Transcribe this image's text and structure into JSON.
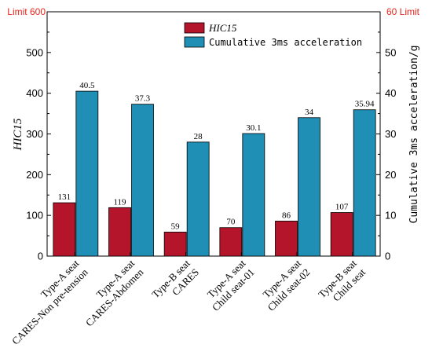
{
  "chart_data": {
    "type": "bar",
    "categories": [
      [
        "Type-A seat",
        "CARES-Non pre-tension"
      ],
      [
        "Type-A seat",
        "CARES-Abdomen"
      ],
      [
        "Type-B seat",
        "CARES"
      ],
      [
        "Type-A seat",
        "Child seat-01"
      ],
      [
        "Type-A seat",
        "Child seat-02"
      ],
      [
        "Type-B seat",
        "Child seat"
      ]
    ],
    "series": [
      {
        "name": "HIC15",
        "axis": "left",
        "color": "#b5152b",
        "values": [
          131,
          119,
          59,
          70,
          86,
          107
        ],
        "labels": [
          "131",
          "119",
          "59",
          "70",
          "86",
          "107"
        ]
      },
      {
        "name": "Cumulative 3ms acceleration",
        "axis": "right",
        "color": "#1f8fb5",
        "values": [
          40.5,
          37.3,
          28,
          30.1,
          34,
          35.94
        ],
        "labels": [
          "40.5",
          "37.3",
          "28",
          "30.1",
          "34",
          "35.94"
        ]
      }
    ],
    "ylabel": "HIC15",
    "ylabel_right": "Cumulative 3ms acceleration/g",
    "ylim": [
      0,
      600
    ],
    "ylim_right": [
      0,
      60
    ],
    "yticks": [
      "0",
      "100",
      "200",
      "300",
      "400",
      "500"
    ],
    "yticks_right": [
      "0",
      "10",
      "20",
      "30",
      "40",
      "50"
    ],
    "limit_left_label": "Limit 600",
    "limit_right_label": "60  Limit",
    "limit_color": "#e8271f",
    "legend_position": "top-center",
    "grid": false
  }
}
